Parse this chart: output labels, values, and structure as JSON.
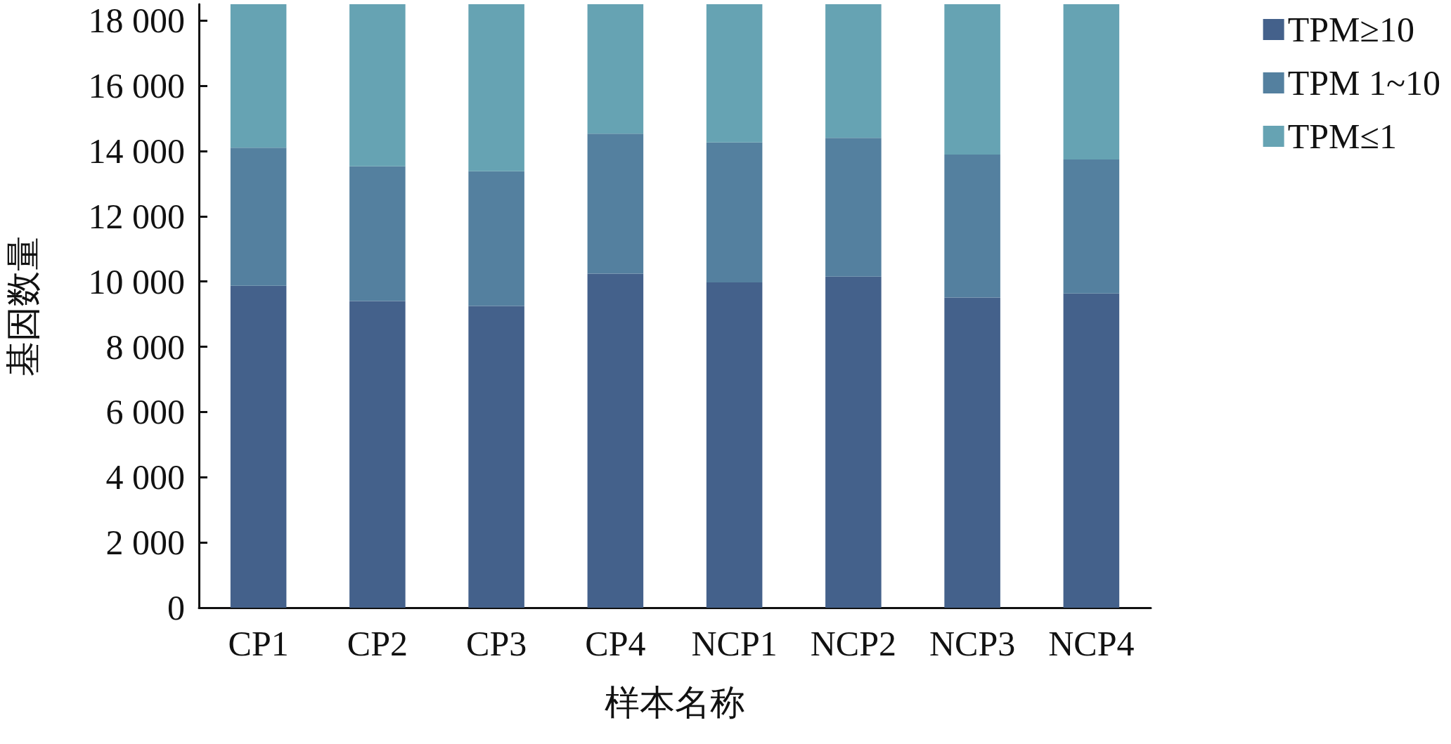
{
  "chart_data": {
    "type": "bar",
    "stacked": true,
    "xlabel": "样本名称",
    "ylabel": "基因数量",
    "categories": [
      "CP1",
      "CP2",
      "CP3",
      "CP4",
      "NCP1",
      "NCP2",
      "NCP3",
      "NCP4"
    ],
    "series": [
      {
        "name": "TPM≥10",
        "color": "#44618b",
        "values": [
          9870,
          9400,
          9250,
          10240,
          9970,
          10150,
          9510,
          9630
        ]
      },
      {
        "name": "TPM 1~10",
        "color": "#54809f",
        "values": [
          4230,
          4130,
          4130,
          4290,
          4290,
          4250,
          4380,
          4110
        ]
      },
      {
        "name": "TPM≤1",
        "color": "#66a3b3",
        "values": [
          4400,
          4970,
          5120,
          3970,
          4240,
          4100,
          4610,
          4760
        ]
      }
    ],
    "ylim": [
      0,
      18500
    ],
    "yticks": [
      {
        "value": 0,
        "label": "0"
      },
      {
        "value": 2000,
        "label": "2 000"
      },
      {
        "value": 4000,
        "label": "4 000"
      },
      {
        "value": 6000,
        "label": "6 000"
      },
      {
        "value": 8000,
        "label": "8 000"
      },
      {
        "value": 10000,
        "label": "10 000"
      },
      {
        "value": 12000,
        "label": "12 000"
      },
      {
        "value": 14000,
        "label": "14 000"
      },
      {
        "value": 16000,
        "label": "16 000"
      },
      {
        "value": 18000,
        "label": "18 000"
      }
    ],
    "grid": false,
    "legend": "top right"
  }
}
